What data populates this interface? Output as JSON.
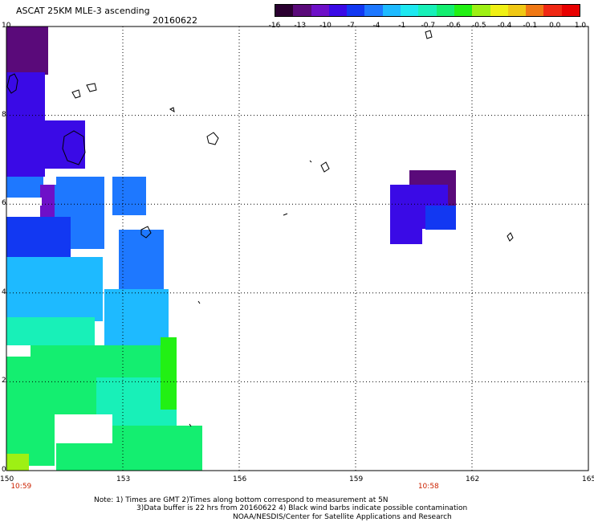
{
  "header": {
    "product_title": "ASCAT 25KM MLE-3 ascending",
    "date": "20160622"
  },
  "colorbar": {
    "colors": [
      "#2a0030",
      "#5a0a7a",
      "#6e10c8",
      "#3a0ae6",
      "#1238f2",
      "#1e78ff",
      "#1ebaff",
      "#1ee8f0",
      "#18f0b8",
      "#14ee70",
      "#22f014",
      "#9ef014",
      "#f0f014",
      "#f0c814",
      "#f07814",
      "#f02814",
      "#e80000"
    ],
    "labels": [
      "-16",
      "-13",
      "-10",
      "-7",
      "-4",
      "-1",
      "-0.7",
      "-0.6",
      "-0.5",
      "-0.4",
      "-0.1",
      "0.0",
      "1.0"
    ]
  },
  "map": {
    "lon_range": [
      150,
      165
    ],
    "lat_range": [
      0,
      10
    ],
    "x_ticks": [
      "150",
      "153",
      "156",
      "159",
      "162",
      "165"
    ],
    "y_ticks": [
      "0",
      "2",
      "4",
      "6",
      "8",
      "10"
    ],
    "pass_times": [
      {
        "label": "10:59",
        "lon": 150.4
      },
      {
        "label": "10:58",
        "lon": 160.9
      }
    ]
  },
  "footer": {
    "note_line1": "Note: 1) Times are GMT 2)Times along bottom correspond to measurement at 5N",
    "note_line2": "3)Data buffer is 22 hrs from 20160622 4) Black wind barbs indicate possible contamination",
    "note_line3": "NOAA/NESDIS/Center for Satellite Applications and Research"
  }
}
